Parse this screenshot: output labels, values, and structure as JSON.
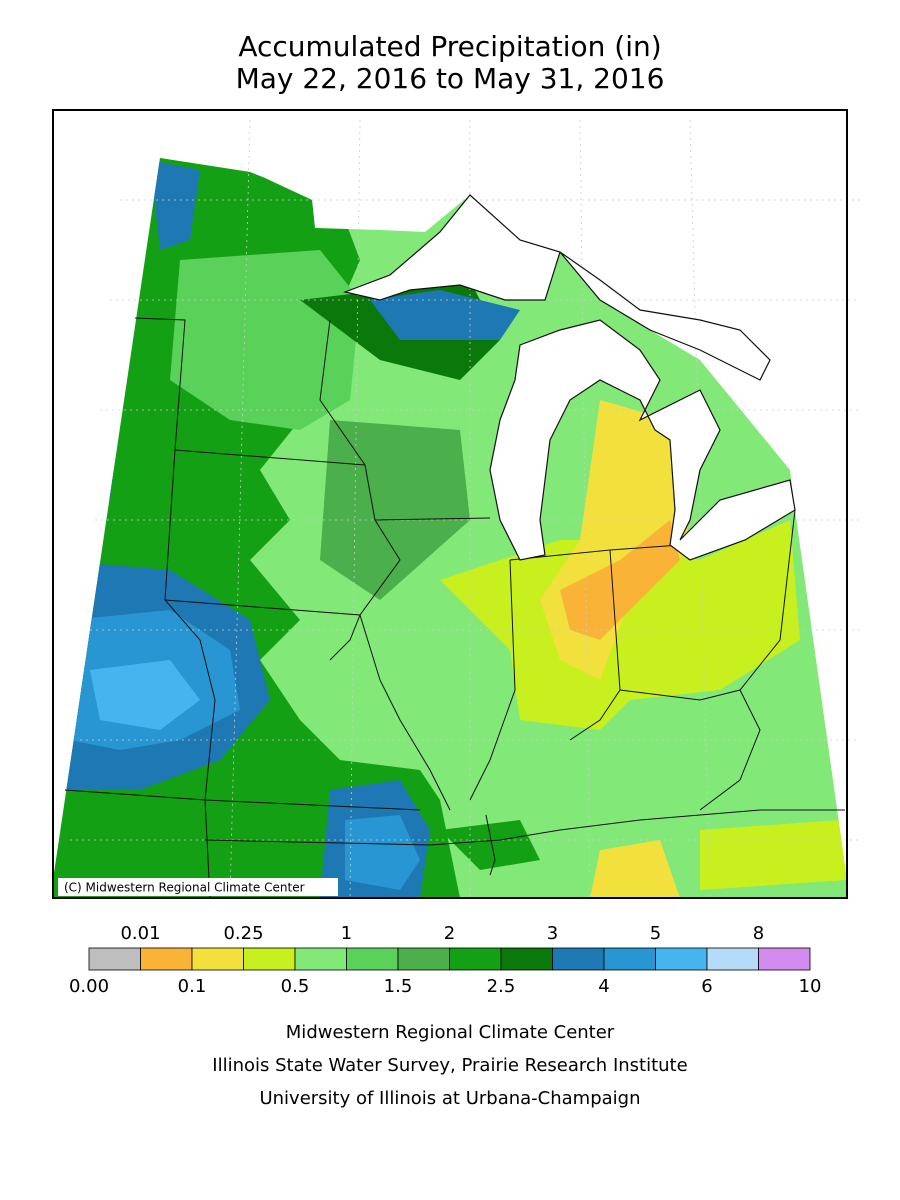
{
  "header": {
    "title": "Accumulated Precipitation (in)",
    "subtitle": "May 22, 2016 to May 31, 2016"
  },
  "map": {
    "credit": "(C) Midwestern Regional Climate Center"
  },
  "legend": {
    "thresholds": [
      {
        "value": 0,
        "label": "0.00"
      },
      0.01,
      0.1,
      0.25,
      0.5,
      1,
      1.5,
      2,
      2.5,
      3,
      4,
      5,
      6,
      8,
      10
    ],
    "colors": [
      "#bebebe",
      "#f9b437",
      "#f2e03c",
      "#c8f01e",
      "#82e878",
      "#5ad25a",
      "#4baf4b",
      "#14a014",
      "#0a780a",
      "#1e78b4",
      "#2896d2",
      "#46b4ee",
      "#b4dcf8",
      "#d28cf0"
    ]
  },
  "footer": [
    "Midwestern Regional Climate Center",
    "Illinois State Water Survey, Prairie Research Institute",
    "University of Illinois at Urbana-Champaign"
  ]
}
